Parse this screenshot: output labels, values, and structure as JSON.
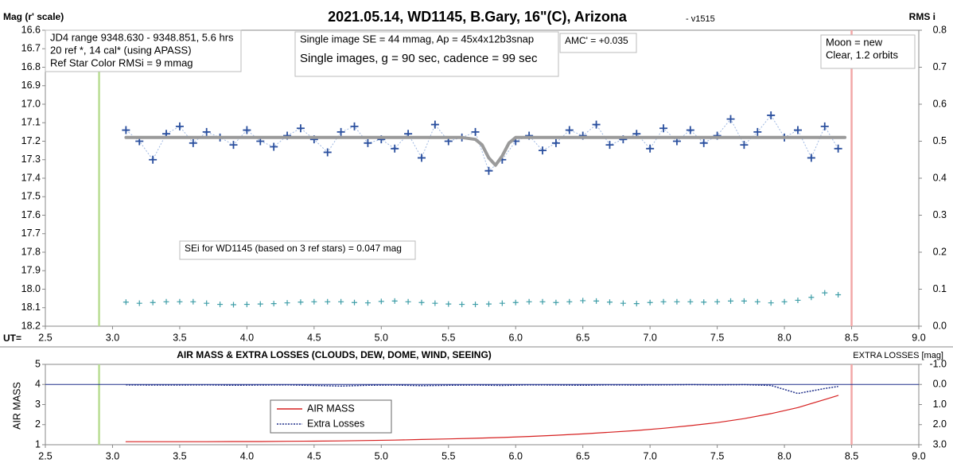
{
  "chart_data": [
    {
      "type": "scatter",
      "title": "2021.05.14, WD1145, B.Gary, 16\"(C), Arizona",
      "subtitle": "- v1515",
      "ylabel": "Mag (r' scale)",
      "y2label": "RMS i",
      "xlabel": "UT=",
      "xlim": [
        2.5,
        9.0
      ],
      "xticks": [
        2.5,
        {
          "value": 3,
          "label": "3.0"
        },
        3.5,
        {
          "value": 4,
          "label": "4.0"
        },
        4.5,
        {
          "value": 5,
          "label": "5.0"
        },
        5.5,
        {
          "value": 6,
          "label": "6.0"
        },
        6.5,
        {
          "value": 7,
          "label": "7.0"
        },
        7.5,
        {
          "value": 8,
          "label": "8.0"
        },
        8.5,
        {
          "value": 9,
          "label": "9.0"
        }
      ],
      "ylim": [
        18.2,
        16.6
      ],
      "yticks": [
        16.6,
        16.7,
        16.8,
        16.9,
        {
          "value": 17,
          "label": "17.0"
        },
        17.1,
        17.2,
        17.3,
        17.4,
        17.5,
        17.6,
        17.7,
        17.8,
        17.9,
        {
          "value": 18,
          "label": "18.0"
        },
        18.1,
        18.2
      ],
      "y2lim": [
        0,
        0.8
      ],
      "y2ticks": [
        {
          "value": 0,
          "label": "0.0"
        },
        0.1,
        0.2,
        0.3,
        0.4,
        0.5,
        0.6,
        0.7,
        0.8
      ],
      "vlines": [
        {
          "x": 2.9,
          "color": "#b9dd93"
        },
        {
          "x": 8.5,
          "color": "#f2a7a7"
        }
      ],
      "annotations": [
        {
          "lines": [
            "JD4 range 9348.630 - 9348.851, 5.6 hrs",
            "20 ref *, 14 cal* (using APASS)",
            "Ref Star Color RMSi = 9 mmag"
          ]
        },
        {
          "lines": [
            "Single image SE = 44 mmag, Ap = 45x4x12b3snap",
            "Single images, g = 90 sec, cadence = 99 sec"
          ]
        },
        {
          "lines": [
            "AMC' = +0.035"
          ]
        },
        {
          "lines": [
            "Moon = new",
            "Clear, 1.2 orbits"
          ]
        },
        {
          "lines": [
            "SEi for WD1145 (based on 3 ref stars) = 0.047 mag"
          ]
        }
      ],
      "series": [
        {
          "style": "plus-line",
          "color": "#2a4f9e",
          "line_color": "#9fb8e2",
          "x": [
            3.1,
            3.2,
            3.3,
            3.4,
            3.5,
            3.6,
            3.7,
            3.8,
            3.9,
            4.0,
            4.1,
            4.2,
            4.3,
            4.4,
            4.5,
            4.6,
            4.7,
            4.8,
            4.9,
            5.0,
            5.1,
            5.2,
            5.3,
            5.4,
            5.5,
            5.6,
            5.7,
            5.8,
            5.9,
            6.0,
            6.1,
            6.2,
            6.3,
            6.4,
            6.5,
            6.6,
            6.7,
            6.8,
            6.9,
            7.0,
            7.1,
            7.2,
            7.3,
            7.4,
            7.5,
            7.6,
            7.7,
            7.8,
            7.9,
            8.0,
            8.1,
            8.2,
            8.3,
            8.4
          ],
          "values": [
            17.14,
            17.2,
            17.3,
            17.16,
            17.12,
            17.21,
            17.15,
            17.18,
            17.22,
            17.14,
            17.2,
            17.23,
            17.17,
            17.13,
            17.19,
            17.26,
            17.15,
            17.12,
            17.21,
            17.19,
            17.24,
            17.16,
            17.29,
            17.11,
            17.2,
            17.18,
            17.15,
            17.36,
            17.3,
            17.2,
            17.17,
            17.25,
            17.21,
            17.14,
            17.17,
            17.11,
            17.22,
            17.19,
            17.16,
            17.24,
            17.13,
            17.2,
            17.14,
            17.21,
            17.17,
            17.08,
            17.22,
            17.15,
            17.06,
            17.18,
            17.14,
            17.29,
            17.12,
            17.24
          ]
        },
        {
          "style": "line",
          "color": "#9a9a9a",
          "x": [
            3.1,
            5.6,
            5.7,
            5.75,
            5.8,
            5.85,
            5.9,
            5.95,
            6.0,
            8.45
          ],
          "values": [
            17.18,
            17.18,
            17.19,
            17.22,
            17.29,
            17.33,
            17.28,
            17.21,
            17.18,
            17.18
          ]
        },
        {
          "style": "plus",
          "color": "#3f9ea8",
          "axis": "y2",
          "x": [
            3.1,
            3.2,
            3.3,
            3.4,
            3.5,
            3.6,
            3.7,
            3.8,
            3.9,
            4.0,
            4.1,
            4.2,
            4.3,
            4.4,
            4.5,
            4.6,
            4.7,
            4.8,
            4.9,
            5.0,
            5.1,
            5.2,
            5.3,
            5.4,
            5.5,
            5.6,
            5.7,
            5.8,
            5.9,
            6.0,
            6.1,
            6.2,
            6.3,
            6.4,
            6.5,
            6.6,
            6.7,
            6.8,
            6.9,
            7.0,
            7.1,
            7.2,
            7.3,
            7.4,
            7.5,
            7.6,
            7.7,
            7.8,
            7.9,
            8.0,
            8.1,
            8.2,
            8.3,
            8.4
          ],
          "values": [
            0.065,
            0.062,
            0.064,
            0.066,
            0.066,
            0.066,
            0.062,
            0.059,
            0.058,
            0.059,
            0.06,
            0.061,
            0.063,
            0.065,
            0.066,
            0.066,
            0.066,
            0.064,
            0.063,
            0.067,
            0.068,
            0.066,
            0.064,
            0.062,
            0.06,
            0.059,
            0.059,
            0.06,
            0.062,
            0.064,
            0.066,
            0.066,
            0.064,
            0.066,
            0.069,
            0.068,
            0.065,
            0.062,
            0.061,
            0.064,
            0.066,
            0.066,
            0.066,
            0.065,
            0.066,
            0.068,
            0.068,
            0.066,
            0.063,
            0.066,
            0.07,
            0.078,
            0.09,
            0.085
          ]
        }
      ]
    },
    {
      "type": "line",
      "title": "AIR MASS & EXTRA LOSSES (CLOUDS, DEW, DOME, WIND, SEEING)",
      "ylabel": "AIR MASS",
      "y2label": "EXTRA LOSSES [mag]",
      "xlim": [
        2.5,
        9.0
      ],
      "xticks": [
        2.5,
        {
          "value": 3,
          "label": "3.0"
        },
        3.5,
        {
          "value": 4,
          "label": "4.0"
        },
        4.5,
        {
          "value": 5,
          "label": "5.0"
        },
        5.5,
        {
          "value": 6,
          "label": "6.0"
        },
        6.5,
        {
          "value": 7,
          "label": "7.0"
        },
        7.5,
        {
          "value": 8,
          "label": "8.0"
        },
        8.5,
        {
          "value": 9,
          "label": "9.0"
        }
      ],
      "ylim": [
        1,
        5
      ],
      "yticks": [
        1,
        2,
        3,
        4,
        5
      ],
      "y2lim": [
        3,
        -1
      ],
      "y2ticks": [
        {
          "value": -1,
          "label": "-1.0"
        },
        {
          "value": 0,
          "label": "0.0"
        },
        {
          "value": 1,
          "label": "1.0"
        },
        {
          "value": 2,
          "label": "2.0"
        },
        {
          "value": 3,
          "label": "3.0"
        }
      ],
      "y2_baseline": 0,
      "vlines": [
        {
          "x": 2.9,
          "color": "#b9dd93"
        },
        {
          "x": 8.5,
          "color": "#f2a7a7"
        }
      ],
      "series": [
        {
          "name": "AIR MASS",
          "style": "line",
          "color": "#d62020",
          "x": [
            3.1,
            3.3,
            3.5,
            3.7,
            3.9,
            4.1,
            4.3,
            4.5,
            4.7,
            4.9,
            5.1,
            5.3,
            5.5,
            5.7,
            5.9,
            6.1,
            6.3,
            6.5,
            6.7,
            6.9,
            7.1,
            7.3,
            7.5,
            7.7,
            7.9,
            8.1,
            8.3,
            8.4
          ],
          "values": [
            1.15,
            1.15,
            1.15,
            1.15,
            1.16,
            1.16,
            1.17,
            1.18,
            1.19,
            1.21,
            1.23,
            1.26,
            1.29,
            1.32,
            1.36,
            1.41,
            1.47,
            1.54,
            1.62,
            1.71,
            1.82,
            1.95,
            2.1,
            2.3,
            2.55,
            2.85,
            3.25,
            3.45
          ]
        },
        {
          "name": "Extra Losses",
          "style": "dashed-line",
          "color": "#1f2f8a",
          "axis": "y2",
          "x": [
            3.1,
            3.3,
            3.5,
            3.7,
            3.9,
            4.1,
            4.3,
            4.5,
            4.7,
            4.9,
            5.1,
            5.3,
            5.5,
            5.7,
            5.9,
            6.1,
            6.3,
            6.5,
            6.7,
            6.9,
            7.1,
            7.3,
            7.5,
            7.7,
            7.9,
            8.1,
            8.3,
            8.4
          ],
          "values": [
            0.02,
            0.03,
            0.03,
            0.02,
            0.04,
            0.03,
            0.02,
            0.05,
            0.08,
            0.04,
            0.03,
            0.06,
            0.04,
            0.03,
            0.05,
            0.02,
            0.03,
            0.04,
            0.02,
            0.03,
            0.02,
            0.01,
            0.02,
            0.01,
            0.05,
            0.45,
            0.2,
            0.1
          ]
        }
      ]
    }
  ]
}
